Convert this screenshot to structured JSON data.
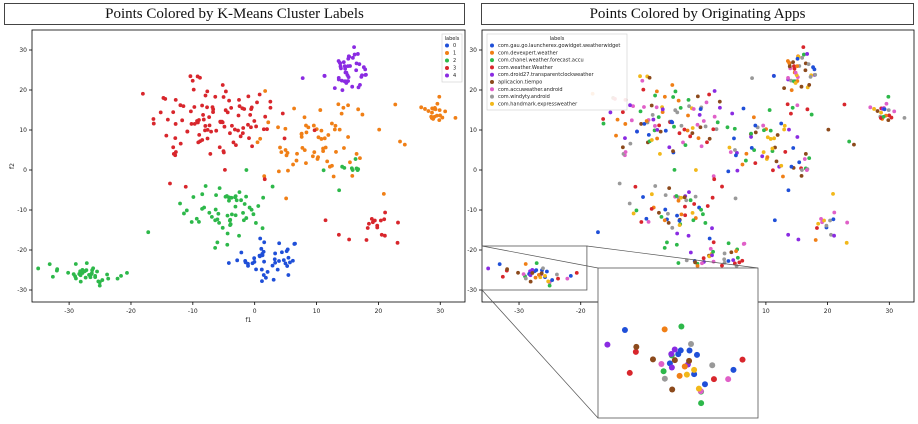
{
  "titles": {
    "left": "Points Colored by K-Means Cluster Labels",
    "right": "Points Colored by Originating Apps"
  },
  "colors": {
    "c0": "#1f4fd8",
    "c1": "#f07f16",
    "c2": "#2db84a",
    "c3": "#d8262c",
    "c4": "#8a2be2",
    "apps": [
      "#1f4fd8",
      "#f07f16",
      "#2db84a",
      "#d8262c",
      "#8a2be2",
      "#8c4a1c",
      "#e060c8",
      "#999999",
      "#f2b81a"
    ]
  },
  "chart_data": [
    {
      "type": "scatter",
      "title": "Points Colored by K-Means Cluster Labels",
      "xlabel": "f1",
      "ylabel": "f2",
      "xlim": [
        -36,
        34
      ],
      "ylim": [
        -33,
        35
      ],
      "xticks": [
        "-30",
        "-20",
        "-10",
        "0",
        "10",
        "20",
        "30"
      ],
      "yticks": [
        "-30",
        "-20",
        "-10",
        "0",
        "10",
        "20",
        "30"
      ],
      "legend": {
        "title": "labels",
        "placement": "top-right",
        "entries": [
          "0",
          "1",
          "2",
          "3",
          "4"
        ]
      },
      "clusters": [
        {
          "name": "0",
          "center": [
            2,
            -22
          ],
          "spread": [
            5,
            4
          ],
          "n": 45
        },
        {
          "name": "1",
          "center": [
            10,
            6
          ],
          "spread": [
            9,
            9
          ],
          "n": 70
        },
        {
          "name": "1",
          "center": [
            29,
            15
          ],
          "spread": [
            2,
            3
          ],
          "n": 22
        },
        {
          "name": "2",
          "center": [
            -27,
            -26
          ],
          "spread": [
            4,
            2
          ],
          "n": 40
        },
        {
          "name": "2",
          "center": [
            -5,
            -10
          ],
          "spread": [
            6,
            6
          ],
          "n": 60
        },
        {
          "name": "2",
          "center": [
            15,
            0
          ],
          "spread": [
            3,
            5
          ],
          "n": 10
        },
        {
          "name": "3",
          "center": [
            -8,
            12
          ],
          "spread": [
            9,
            9
          ],
          "n": 110
        },
        {
          "name": "3",
          "center": [
            20,
            -15
          ],
          "spread": [
            5,
            4
          ],
          "n": 18
        },
        {
          "name": "4",
          "center": [
            15,
            25
          ],
          "spread": [
            3,
            4
          ],
          "n": 45
        }
      ],
      "grid": false
    },
    {
      "type": "scatter",
      "title": "Points Colored by Originating Apps",
      "xlim": [
        -36,
        34
      ],
      "ylim": [
        -33,
        35
      ],
      "xticks": [
        "-30",
        "-20",
        "-10",
        "0",
        "10",
        "20",
        "30"
      ],
      "yticks": [
        "-30",
        "-20",
        "-10",
        "0",
        "10",
        "20",
        "30"
      ],
      "legend": {
        "title": "labels",
        "placement": "top-left",
        "entries": [
          "com.gau.go.launcherex.gowidget.weatherwidget",
          "com.devexpert.weather",
          "com.chanel.weather.forecast.accu",
          "com.weather.Weather",
          "com.droid27.transparentclockweather",
          "aplicacion.tiempo",
          "com.accuweather.android",
          "com.windyty.android",
          "com.handmark.expressweather"
        ]
      },
      "inset": {
        "region_x": [
          -36,
          -19
        ],
        "region_y": [
          -30,
          -19
        ],
        "note": "zoomed view of the lower-left cluster"
      },
      "grid": false
    }
  ]
}
